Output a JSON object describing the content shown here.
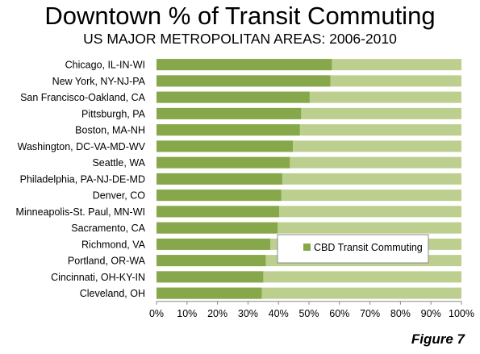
{
  "title": "Downtown % of Transit Commuting",
  "subtitle": "US MAJOR METROPOLITAN AREAS: 2006-2010",
  "figure_label": "Figure 7",
  "colors": {
    "series": "#86a84a",
    "remainder": "#bccf8f"
  },
  "chart_data": {
    "type": "bar",
    "orientation": "horizontal",
    "stacked": "100%",
    "title": "Downtown % of Transit Commuting",
    "subtitle": "US MAJOR METROPOLITAN AREAS: 2006-2010",
    "categories": [
      "Chicago, IL-IN-WI",
      "New York, NY-NJ-PA",
      "San Francisco-Oakland, CA",
      "Pittsburgh, PA",
      "Boston, MA-NH",
      "Washington, DC-VA-MD-WV",
      "Seattle, WA",
      "Philadelphia, PA-NJ-DE-MD",
      "Denver, CO",
      "Minneapolis-St. Paul, MN-WI",
      "Sacramento, CA",
      "Richmond, VA",
      "Portland, OR-WA",
      "Cincinnati, OH-KY-IN",
      "Cleveland, OH"
    ],
    "series": [
      {
        "name": "CBD Transit Commuting",
        "values": [
          57.5,
          57,
          50.2,
          47.4,
          47,
          44.7,
          43.7,
          41.2,
          40.9,
          40.2,
          39.7,
          37.3,
          35.8,
          35,
          34.5
        ]
      }
    ],
    "xlim": [
      0,
      100
    ],
    "xticks": [
      "0%",
      "10%",
      "20%",
      "30%",
      "40%",
      "50%",
      "60%",
      "70%",
      "80%",
      "90%",
      "100%"
    ],
    "xlabel": "",
    "ylabel": "",
    "grid": false,
    "legend_position": "lower-right-inside"
  }
}
